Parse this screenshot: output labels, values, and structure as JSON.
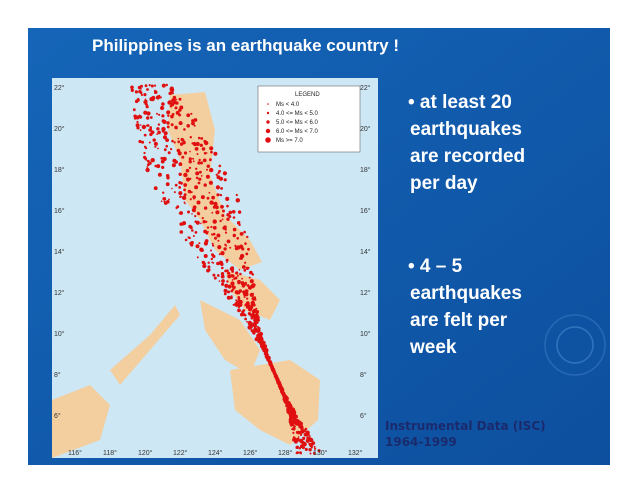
{
  "title": "Philippines is an earthquake country !",
  "bullets": [
    [
      "• at least 20",
      "earthquakes",
      "are recorded",
      "per day"
    ],
    [
      "• 4 – 5",
      "earthquakes",
      "are felt per",
      "week"
    ]
  ],
  "caption": [
    "Instrumental Data (ISC)",
    "1964-1999"
  ],
  "map": {
    "legend": {
      "title": "LEGEND",
      "entries": [
        "Ms < 4.0",
        "4.0 <= Ms < 5.0",
        "5.0 <= Ms < 6.0",
        "6.0 <= Ms < 7.0",
        "Ms >= 7.0"
      ]
    },
    "lat_labels": [
      "22°",
      "20°",
      "18°",
      "16°",
      "14°",
      "12°",
      "10°",
      "8°",
      "6°"
    ],
    "lon_labels": [
      "116°",
      "118°",
      "120°",
      "122°",
      "124°",
      "126°",
      "128°",
      "130°",
      "132°"
    ]
  }
}
